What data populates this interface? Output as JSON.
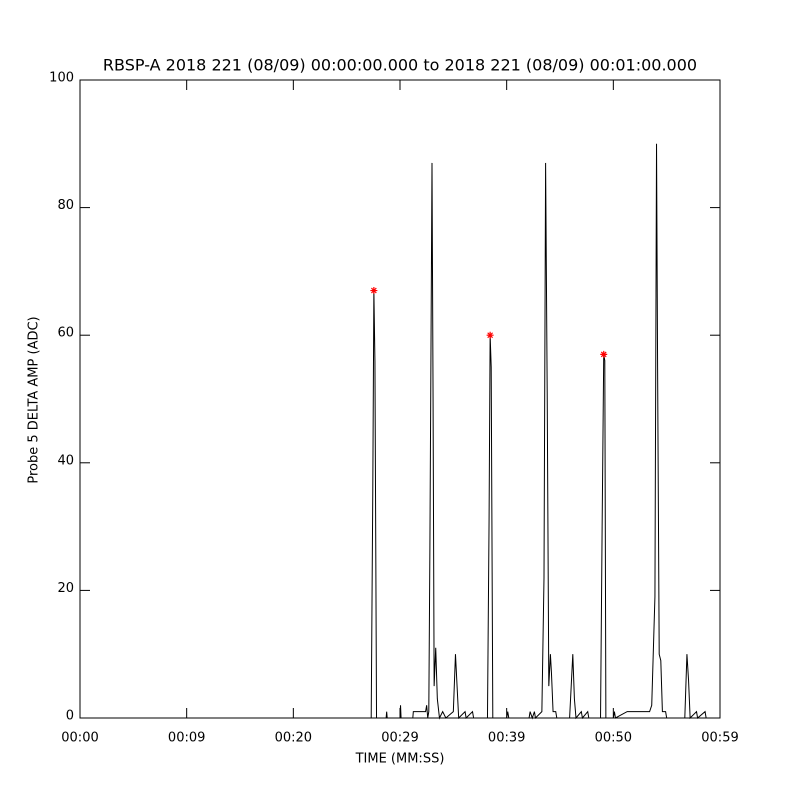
{
  "chart_data": {
    "type": "line",
    "title": "RBSP-A 2018 221 (08/09) 00:00:00.000 to 2018 221 (08/09) 00:01:00.000",
    "x_label": "TIME (MM:SS)",
    "y_label": "Probe 5 DELTA AMP (ADC)",
    "xlim": [
      0,
      60
    ],
    "ylim": [
      0,
      100
    ],
    "xticks": [
      {
        "value": 0,
        "label": "00:00"
      },
      {
        "value": 10,
        "label": "00:09"
      },
      {
        "value": 20,
        "label": "00:20"
      },
      {
        "value": 30,
        "label": "00:29"
      },
      {
        "value": 40,
        "label": "00:39"
      },
      {
        "value": 50,
        "label": "00:50"
      },
      {
        "value": 60,
        "label": "00:59"
      }
    ],
    "yticks": [
      0,
      20,
      40,
      60,
      80,
      100
    ],
    "x": [
      0,
      27.3,
      27.45,
      27.55,
      27.65,
      27.8,
      28.7,
      28.75,
      28.8,
      30.0,
      30.05,
      30.1,
      31.2,
      31.25,
      32.4,
      32.5,
      32.6,
      32.7,
      32.8,
      33.0,
      33.1,
      33.2,
      33.35,
      33.5,
      33.7,
      34.0,
      34.3,
      35.0,
      35.2,
      35.35,
      35.5,
      36.1,
      36.2,
      36.8,
      36.9,
      38.2,
      38.35,
      38.45,
      38.55,
      38.7,
      40.0,
      40.1,
      40.2,
      42.1,
      42.2,
      42.4,
      42.6,
      42.7,
      43.3,
      43.5,
      43.65,
      43.8,
      43.95,
      44.1,
      44.2,
      44.35,
      44.6,
      44.7,
      45.9,
      46.05,
      46.2,
      46.35,
      46.5,
      47.0,
      47.1,
      47.6,
      47.7,
      48.8,
      48.95,
      49.1,
      49.2,
      49.3,
      50.0,
      50.1,
      50.2,
      51.3,
      53.4,
      53.6,
      53.9,
      54.05,
      54.15,
      54.3,
      54.45,
      54.6,
      54.9,
      55.0,
      56.7,
      56.9,
      57.05,
      57.2,
      57.8,
      57.9,
      58.6,
      58.7
    ],
    "series": [
      {
        "color": "#000000",
        "values": [
          0,
          0,
          36,
          67,
          56,
          0,
          0,
          1,
          0,
          0,
          2,
          0,
          0,
          1,
          1,
          2,
          0,
          1,
          26,
          87,
          50,
          5,
          11,
          3,
          0,
          1,
          0,
          1,
          10,
          5,
          0,
          1,
          0,
          1,
          0,
          0,
          31,
          60,
          55,
          0,
          0,
          1,
          0,
          0,
          1,
          0,
          1,
          0,
          1,
          22,
          87,
          51,
          5,
          10,
          7,
          1,
          1,
          0,
          0,
          5,
          10,
          3,
          0,
          1,
          0,
          1,
          0,
          0,
          30,
          57,
          56,
          0,
          0,
          1,
          0,
          1,
          1,
          2,
          19,
          90,
          55,
          10,
          9,
          1,
          1,
          0,
          0,
          10,
          6,
          0,
          1,
          0,
          1,
          0
        ]
      }
    ],
    "markers": {
      "color": "#ff0000",
      "x": [
        27.55,
        38.45,
        49.1
      ],
      "values": [
        67,
        60,
        57
      ]
    }
  }
}
